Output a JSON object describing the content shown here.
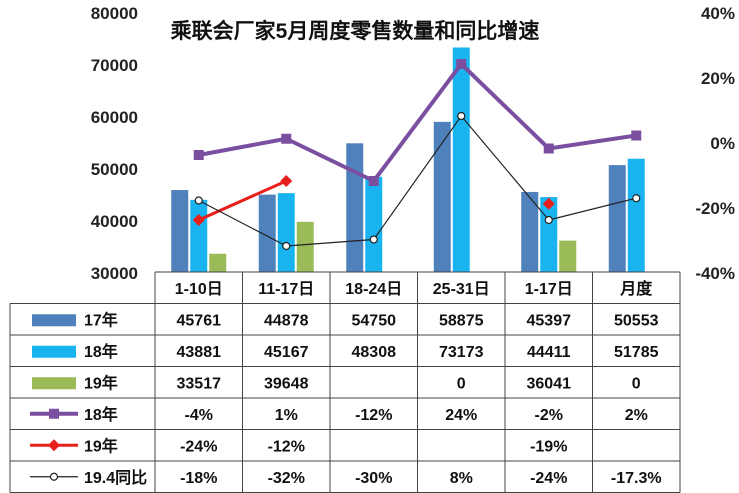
{
  "chart_data": {
    "type": "bar",
    "title": "乘联会厂家5月周度零售数量和同比增速",
    "categories": [
      "1-10日",
      "11-17日",
      "18-24日",
      "25-31日",
      "1-17日",
      "月度"
    ],
    "y_left": {
      "ticks": [
        "80000",
        "70000",
        "60000",
        "50000",
        "40000",
        "30000"
      ],
      "ylim": [
        30000,
        80000
      ]
    },
    "y_right": {
      "ticks": [
        "40%",
        "20%",
        "0%",
        "-20%",
        "-40%"
      ],
      "ylim": [
        -40,
        40
      ]
    },
    "bar_series": [
      {
        "name": "17年",
        "color": "#4f81bd",
        "values": [
          45761,
          44878,
          54750,
          58875,
          45397,
          50553
        ],
        "labels": [
          "45761",
          "44878",
          "54750",
          "58875",
          "45397",
          "50553"
        ]
      },
      {
        "name": "18年",
        "color": "#19b4f0",
        "values": [
          43881,
          45167,
          48308,
          73173,
          44411,
          51785
        ],
        "labels": [
          "43881",
          "45167",
          "48308",
          "73173",
          "44411",
          "51785"
        ]
      },
      {
        "name": "19年",
        "color": "#9bbb59",
        "values": [
          33517,
          39648,
          null,
          0,
          36041,
          0
        ],
        "labels": [
          "33517",
          "39648",
          "",
          "0",
          "36041",
          "0"
        ]
      }
    ],
    "line_series": [
      {
        "name": "18年",
        "color": "#7b4fa0",
        "marker": "square",
        "values": [
          -4,
          1,
          -12,
          24,
          -2,
          2
        ],
        "labels": [
          "-4%",
          "1%",
          "-12%",
          "24%",
          "-2%",
          "2%"
        ]
      },
      {
        "name": "19年",
        "color": "#e8201b",
        "marker": "diamond",
        "values": [
          -24,
          -12,
          null,
          null,
          -19,
          null
        ],
        "labels": [
          "-24%",
          "-12%",
          "",
          "",
          "-19%",
          ""
        ]
      },
      {
        "name": "19.4同比",
        "color": "#222222",
        "marker": "circle",
        "values": [
          -18,
          -32,
          -30,
          8,
          -24,
          -17.3
        ],
        "labels": [
          "-18%",
          "-32%",
          "-30%",
          "8%",
          "-24%",
          "-17.3%"
        ]
      }
    ]
  }
}
